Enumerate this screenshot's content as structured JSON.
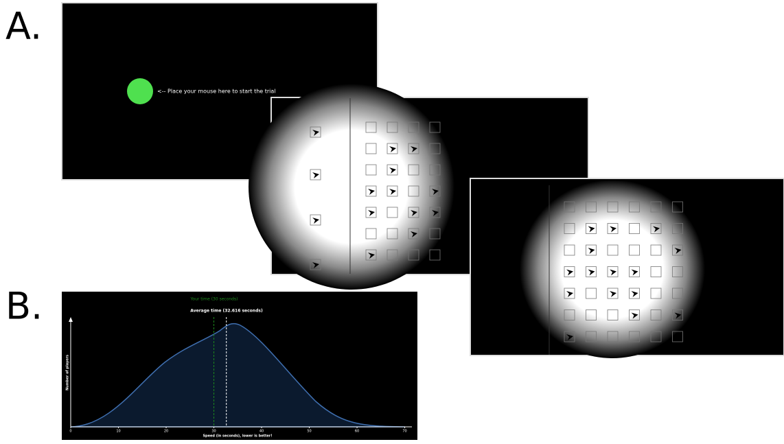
{
  "labels": {
    "panel_a": "A.",
    "panel_b": "B."
  },
  "panel_a": {
    "instruction": "<-- Place your mouse here to start the trial"
  },
  "panel_b": {
    "your_time_label": "Your time (30 seconds)",
    "your_time": 30,
    "average_label": "Average time (32.616 seconds)",
    "average_time": 32.616,
    "y_label": "Number of players",
    "x_label": "Speed (in seconds), lower is better!",
    "xlim": [
      0,
      71.5
    ],
    "xticks": [
      0,
      10,
      20,
      30,
      40,
      50,
      60,
      70
    ]
  }
}
